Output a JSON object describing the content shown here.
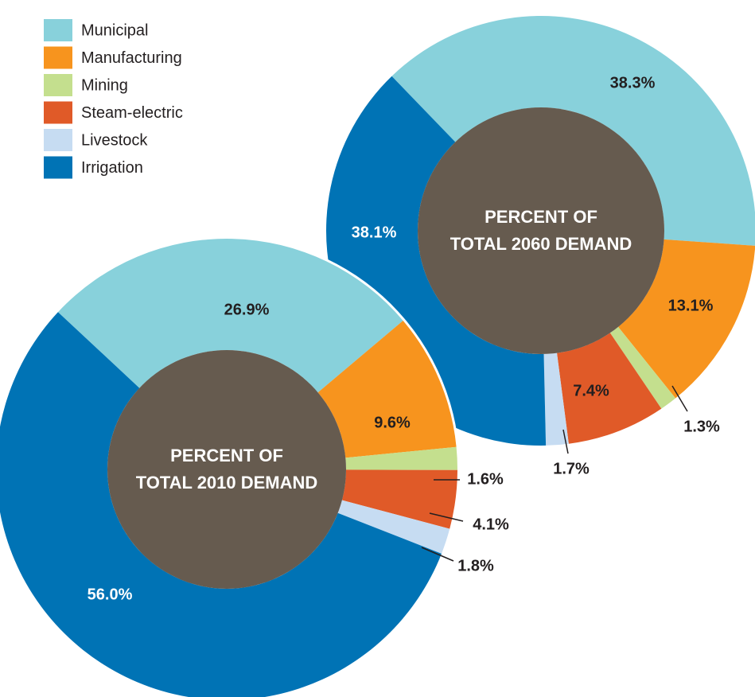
{
  "chart_data": [
    {
      "type": "donut",
      "title": "PERCENT OF\nTOTAL 2010 DEMAND",
      "categories": [
        "Municipal",
        "Manufacturing",
        "Mining",
        "Steam-electric",
        "Livestock",
        "Irrigation"
      ],
      "values": [
        26.9,
        9.6,
        1.6,
        4.1,
        1.8,
        56.0
      ],
      "value_labels": [
        "26.9%",
        "9.6%",
        "1.6%",
        "4.1%",
        "1.8%",
        "56.0%"
      ],
      "colors": [
        "#88d1db",
        "#f7941e",
        "#c4df8e",
        "#e05a28",
        "#c6dcf2",
        "#0073b5"
      ]
    },
    {
      "type": "donut",
      "title": "PERCENT OF\nTOTAL 2060 DEMAND",
      "categories": [
        "Municipal",
        "Manufacturing",
        "Mining",
        "Steam-electric",
        "Livestock",
        "Irrigation"
      ],
      "values": [
        38.3,
        13.1,
        1.3,
        7.4,
        1.7,
        38.1
      ],
      "value_labels": [
        "38.3%",
        "13.1%",
        "1.3%",
        "7.4%",
        "1.7%",
        "38.1%"
      ],
      "colors": [
        "#88d1db",
        "#f7941e",
        "#c4df8e",
        "#e05a28",
        "#c6dcf2",
        "#0073b5"
      ]
    }
  ]
}
